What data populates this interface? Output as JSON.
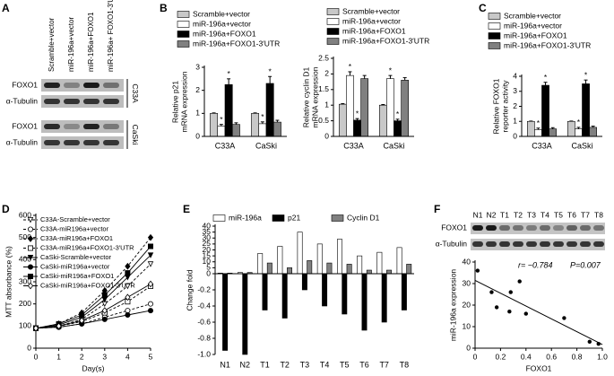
{
  "panel_labels": [
    "A",
    "B",
    "C",
    "D",
    "E",
    "F"
  ],
  "blot_a": {
    "lanes": [
      "Scramble+vector",
      "miR-196a+vector",
      "miR-196a+FOXO1",
      "miR-196a+ FOXO1-3′UTR"
    ],
    "rows": [
      "FOXO1",
      "α-Tubulin",
      "FOXO1",
      "α-Tubulin"
    ],
    "cell_lines": [
      "C33A",
      "CaSki"
    ]
  },
  "blot_f": {
    "lanes": [
      "N1",
      "N2",
      "T1",
      "T2",
      "T3",
      "T4",
      "T5",
      "T6",
      "T7",
      "T8"
    ],
    "rows": [
      "FOXO1",
      "α-Tubulin"
    ]
  },
  "chart_data": [
    {
      "type": "bar",
      "y_label": [
        "Relative p21",
        "mRNA expression"
      ],
      "categories": [
        "C33A",
        "CaSki"
      ],
      "ylim": [
        0,
        3
      ],
      "yticks": [
        0,
        1,
        2,
        3
      ],
      "series": [
        {
          "name": "Scramble+vector",
          "color": "#c8c8c8",
          "values": [
            1,
            1
          ],
          "errors": [
            0.02,
            0.02
          ]
        },
        {
          "name": "miR-196a+vector",
          "color": "#ffffff",
          "values": [
            0.45,
            0.55
          ],
          "errors": [
            0.07,
            0.08
          ],
          "markers": [
            "*",
            "*"
          ]
        },
        {
          "name": "miR-196a+FOXO1",
          "color": "#000000",
          "values": [
            2.25,
            2.3
          ],
          "errors": [
            0.25,
            0.3
          ],
          "markers": [
            "*",
            "*"
          ]
        },
        {
          "name": "miR-196a+FOXO1-3′UTR",
          "color": "#808080",
          "values": [
            0.52,
            0.62
          ],
          "errors": [
            0.07,
            0.08
          ]
        }
      ]
    },
    {
      "type": "bar",
      "y_label": [
        "Relative cyclin D1",
        "mRNA expression"
      ],
      "categories": [
        "C33A",
        "CaSki"
      ],
      "ylim": [
        0,
        2.5
      ],
      "yticks": [
        0,
        0.5,
        1,
        1.5,
        2,
        2.5
      ],
      "series": [
        {
          "name": "Scramble+vector",
          "color": "#c8c8c8",
          "values": [
            1.03,
            1.0
          ],
          "errors": [
            0.02,
            0.02
          ]
        },
        {
          "name": "miR-196a+vector",
          "color": "#ffffff",
          "values": [
            1.95,
            1.85
          ],
          "errors": [
            0.12,
            0.1
          ],
          "markers": [
            "*",
            "*"
          ]
        },
        {
          "name": "miR-196a+FOXO1",
          "color": "#000000",
          "values": [
            0.52,
            0.5
          ],
          "errors": [
            0.05,
            0.05
          ],
          "markers": [
            "*",
            "*"
          ]
        },
        {
          "name": "miR-196a+FOXO1-3′UTR",
          "color": "#808080",
          "values": [
            1.85,
            1.8
          ],
          "errors": [
            0.1,
            0.08
          ]
        }
      ]
    },
    {
      "type": "bar",
      "y_label": [
        "Relative FOXO1",
        "reporter activity"
      ],
      "categories": [
        "C33A",
        "CaSki"
      ],
      "ylim": [
        0,
        4
      ],
      "yticks": [
        0,
        1,
        2,
        3,
        4
      ],
      "series": [
        {
          "name": "Scramble+vector",
          "color": "#c8c8c8",
          "values": [
            1,
            1
          ],
          "errors": [
            0.02,
            0.02
          ]
        },
        {
          "name": "miR-196a+vector",
          "color": "#ffffff",
          "values": [
            0.45,
            0.5
          ],
          "errors": [
            0.1,
            0.1
          ],
          "markers": [
            "*",
            "*"
          ]
        },
        {
          "name": "miR-196a+FOXO1",
          "color": "#000000",
          "values": [
            3.4,
            3.5
          ],
          "errors": [
            0.2,
            0.25
          ],
          "markers": [
            "*",
            "*"
          ]
        },
        {
          "name": "miR-196a+FOXO1-3′UTR",
          "color": "#808080",
          "values": [
            0.5,
            0.6
          ],
          "errors": [
            0.08,
            0.08
          ]
        }
      ]
    },
    {
      "type": "line",
      "y_label": [
        "MTT absorbance (%)"
      ],
      "x_label": "Day(s)",
      "x": [
        0,
        1,
        2,
        3,
        4,
        5
      ],
      "xlim": [
        0,
        5
      ],
      "xticks": [
        0,
        1,
        2,
        3,
        4,
        5
      ],
      "ylim": [
        0,
        600
      ],
      "yticks": [
        0,
        100,
        200,
        300,
        400,
        500,
        600
      ],
      "series": [
        {
          "name": "C33A-Scramble+vector",
          "color": "#000000",
          "marker": "triangle",
          "filled": false,
          "dashed": true,
          "values": [
            90,
            100,
            130,
            200,
            280,
            380
          ]
        },
        {
          "name": "C33A-miR196a+vector",
          "color": "#000000",
          "marker": "circle",
          "filled": false,
          "dashed": true,
          "values": [
            90,
            95,
            110,
            140,
            170,
            200
          ]
        },
        {
          "name": "C33A-miR196a+FOXO1",
          "color": "#000000",
          "marker": "diamond",
          "filled": true,
          "dashed": true,
          "values": [
            90,
            110,
            160,
            260,
            370,
            500
          ]
        },
        {
          "name": "C33A-miR196a+FOXO1-3′UTR",
          "color": "#000000",
          "marker": "square",
          "filled": false,
          "dashed": true,
          "values": [
            90,
            100,
            120,
            160,
            210,
            280
          ]
        },
        {
          "name": "CaSki-Scramble+vector",
          "color": "#000000",
          "marker": "triangle",
          "filled": true,
          "dashed": false,
          "values": [
            90,
            105,
            140,
            220,
            320,
            420
          ]
        },
        {
          "name": "CaSki-miR196a+vector",
          "color": "#000000",
          "marker": "circle",
          "filled": true,
          "dashed": false,
          "values": [
            90,
            95,
            110,
            130,
            150,
            170
          ]
        },
        {
          "name": "CaSki-miR196a+FOXO1",
          "color": "#000000",
          "marker": "square",
          "filled": true,
          "dashed": false,
          "values": [
            90,
            110,
            150,
            240,
            340,
            460
          ]
        },
        {
          "name": "CaSki-miR196a+FOXO1-3′UTR",
          "color": "#000000",
          "marker": "diamond",
          "filled": false,
          "dashed": false,
          "values": [
            90,
            100,
            125,
            170,
            230,
            290
          ]
        }
      ]
    },
    {
      "type": "bar",
      "y_label": [
        "Change fold"
      ],
      "categories": [
        "N1",
        "N2",
        "T1",
        "T2",
        "T3",
        "T4",
        "T5",
        "T6",
        "T7",
        "T8"
      ],
      "ylim": [
        -1,
        40
      ],
      "yticks": [
        40,
        35,
        30,
        25,
        20,
        15,
        10,
        5,
        0,
        -0.2,
        -0.4,
        -0.6,
        -0.8,
        {
          "value": -1,
          "label": "-1.0"
        }
      ],
      "series": [
        {
          "name": "miR-196a",
          "color": "#ffffff",
          "values": [
            0.5,
            1,
            17,
            23,
            35,
            25,
            29,
            15,
            18,
            22
          ]
        },
        {
          "name": "p21",
          "color": "#000000",
          "values": [
            -0.95,
            -1,
            -0.45,
            -0.55,
            -0.2,
            -0.4,
            -0.5,
            -0.7,
            -0.6,
            -0.45
          ]
        },
        {
          "name": "Cyclin D1",
          "color": "#808080",
          "values": [
            0.5,
            1,
            9,
            5,
            11,
            9,
            8,
            3,
            3,
            8
          ]
        }
      ]
    },
    {
      "type": "scatter",
      "y_label": [
        "miR-196a expression"
      ],
      "x_label": "FOXO1",
      "annotations": [
        "r= −0.784",
        "P=0.007"
      ],
      "xlim": [
        0,
        1
      ],
      "xticks": [
        0,
        0.2,
        0.4,
        0.6,
        0.8,
        {
          "value": 1,
          "label": "1.0"
        }
      ],
      "ylim": [
        0,
        40
      ],
      "yticks": [
        0,
        10,
        20,
        30,
        40
      ],
      "color": "#000000",
      "x": [
        0.02,
        0.13,
        0.17,
        0.27,
        0.28,
        0.35,
        0.4,
        0.7,
        0.9,
        0.97
      ],
      "values": [
        36,
        26,
        19,
        17,
        26,
        31,
        16,
        14,
        3,
        2
      ]
    }
  ]
}
